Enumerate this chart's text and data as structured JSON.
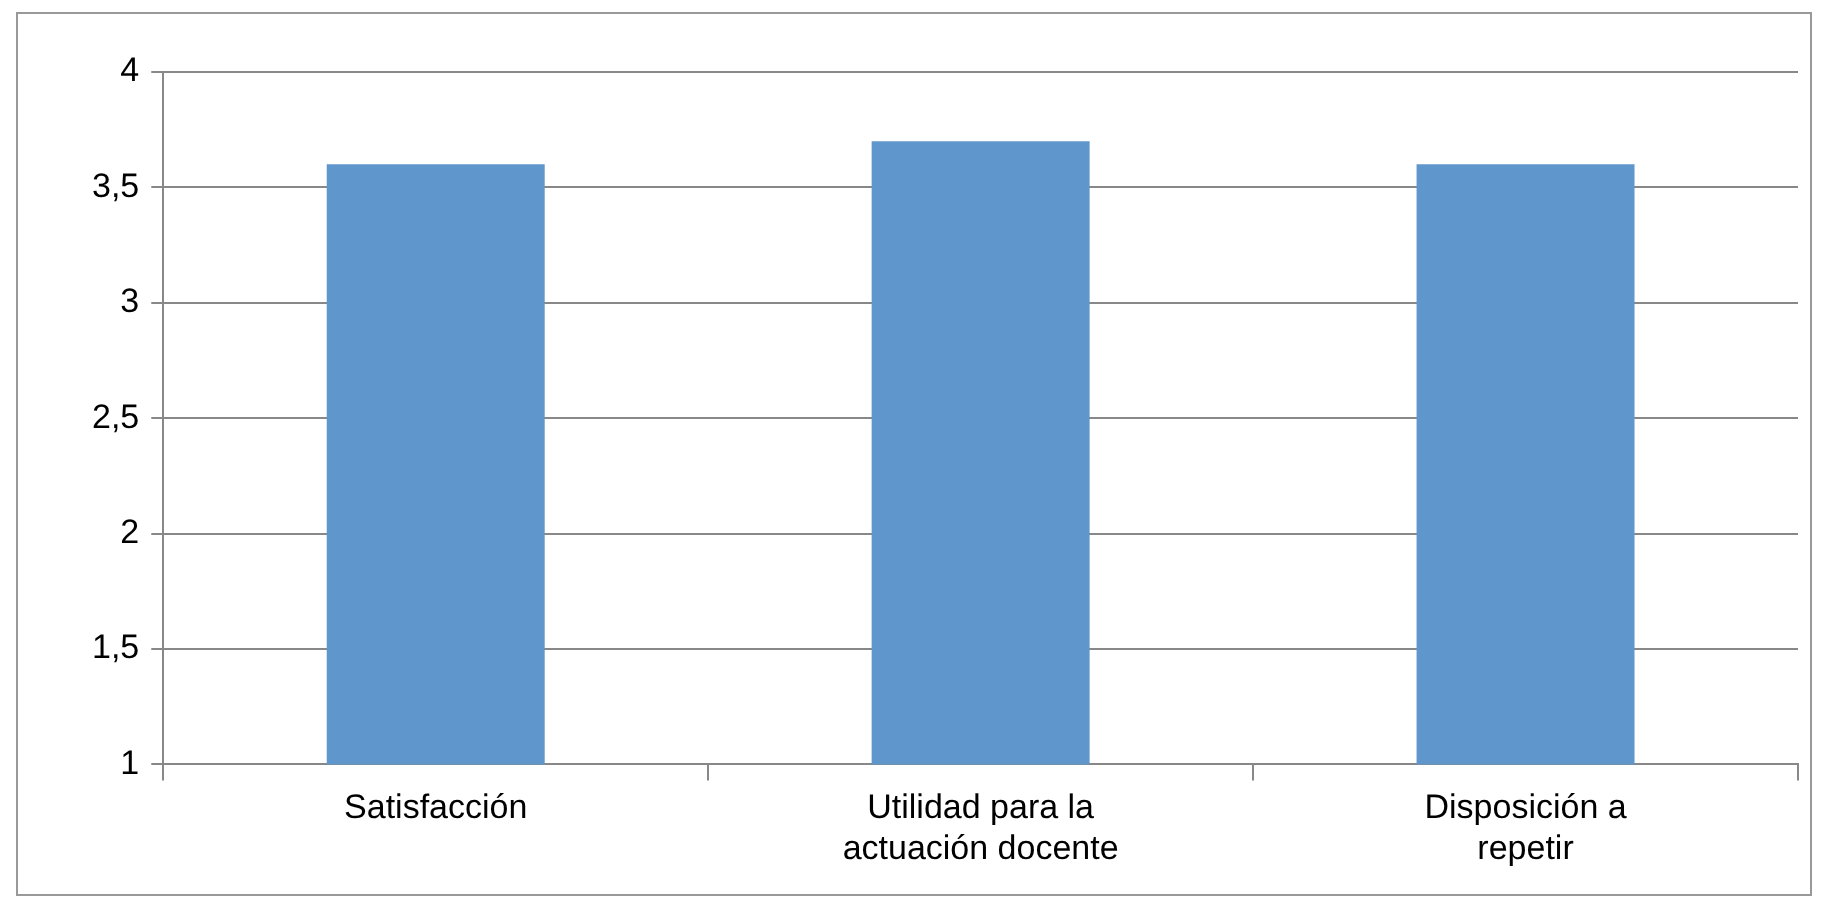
{
  "chart_data": {
    "type": "bar",
    "categories": [
      "Satisfacción",
      "Utilidad para la actuación docente",
      "Disposición a repetir"
    ],
    "values": [
      3.6,
      3.7,
      3.6
    ],
    "color": "#5f96cc",
    "ylim": [
      1,
      4
    ],
    "yticks": [
      1,
      {
        "value": 1.5,
        "label": "1,5"
      },
      2,
      {
        "value": 2.5,
        "label": "2,5"
      },
      3,
      {
        "value": 3.5,
        "label": "3,5"
      },
      4
    ],
    "grid": "y",
    "legend": false
  }
}
